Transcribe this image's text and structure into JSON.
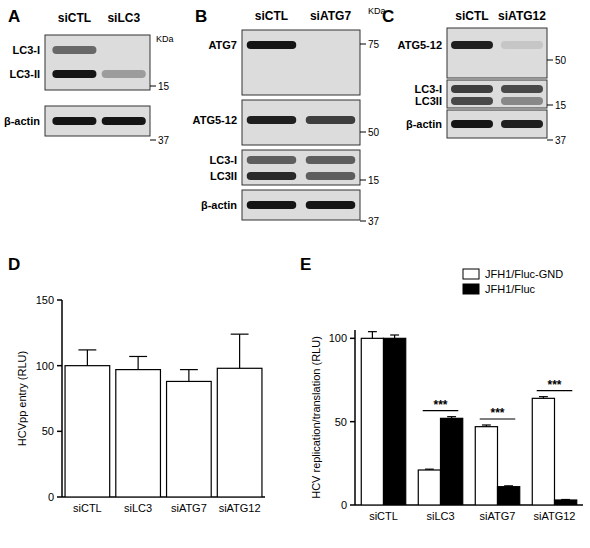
{
  "blots": [
    {
      "title": "A",
      "lanes": [
        "siCTL",
        "siLC3"
      ],
      "unit": "KDa",
      "panels": [
        {
          "rows": [
            {
              "label": "LC3-I",
              "bands": [
                0.55,
                0
              ]
            },
            {
              "label": "LC3-II",
              "bands": [
                0.95,
                0.3
              ]
            }
          ],
          "markers": [
            15
          ]
        },
        {
          "rows": [
            {
              "label": "β-actin",
              "bands": [
                0.95,
                0.95
              ]
            }
          ],
          "markers": [
            37
          ]
        }
      ]
    },
    {
      "title": "B",
      "lanes": [
        "siCTL",
        "siATG7"
      ],
      "unit": "KDa",
      "panels": [
        {
          "rows": [
            {
              "label": "ATG7",
              "bands": [
                0.95,
                0
              ]
            }
          ],
          "markers": [
            75
          ]
        },
        {
          "rows": [
            {
              "label": "ATG5-12",
              "bands": [
                0.9,
                0.75
              ]
            }
          ],
          "markers": [
            50
          ]
        },
        {
          "rows": [
            {
              "label": "LC3-I",
              "bands": [
                0.6,
                0.6
              ]
            },
            {
              "label": "LC3II",
              "bands": [
                0.85,
                0.6
              ]
            }
          ],
          "markers": [
            15
          ]
        },
        {
          "rows": [
            {
              "label": "β-actin",
              "bands": [
                0.95,
                0.95
              ]
            }
          ],
          "markers": [
            37
          ]
        }
      ]
    },
    {
      "title": "C",
      "lanes": [
        "siCTL",
        "siATG12"
      ],
      "panels": [
        {
          "rows": [
            {
              "label": "ATG5-12",
              "bands": [
                0.9,
                0.1
              ]
            }
          ],
          "markers": [
            50
          ]
        },
        {
          "rows": [
            {
              "label": "LC3-I",
              "bands": [
                0.75,
                0.7
              ]
            },
            {
              "label": "LC3II",
              "bands": [
                0.7,
                0.4
              ]
            }
          ],
          "markers": [
            15
          ]
        },
        {
          "rows": [
            {
              "label": "β-actin",
              "bands": [
                0.95,
                0.9
              ]
            }
          ],
          "markers": [
            37
          ]
        }
      ]
    }
  ],
  "chart_data": [
    {
      "type": "bar",
      "title": "D",
      "y_label": "HCVpp entry (RLU)",
      "categories": [
        "siCTL",
        "siLC3",
        "siATG7",
        "siATG12"
      ],
      "values": [
        100,
        97,
        88,
        98
      ],
      "errors": [
        12,
        10,
        9,
        26
      ],
      "color": "#ffffff",
      "ylim": [
        0,
        150
      ],
      "yticks": [
        0,
        50,
        100,
        150
      ]
    },
    {
      "type": "bar",
      "title": "E",
      "y_label": "HCV replication/translation (RLU)",
      "categories": [
        "siCTL",
        "siLC3",
        "siATG7",
        "siATG12"
      ],
      "series": [
        {
          "name": "JFH1/Fluc-GND",
          "color": "#ffffff",
          "values": [
            100,
            21,
            47,
            64
          ],
          "errors": [
            4,
            0.5,
            1,
            1
          ]
        },
        {
          "name": "JFH1/Fluc",
          "color": "#000000",
          "values": [
            100,
            52,
            11,
            3
          ],
          "errors": [
            2,
            1,
            0.5,
            0.3
          ]
        }
      ],
      "annotations": [
        null,
        "***",
        "***",
        "***"
      ],
      "legend": "top-right",
      "ylim": [
        0,
        105
      ],
      "yticks": [
        0,
        50,
        100
      ]
    }
  ]
}
